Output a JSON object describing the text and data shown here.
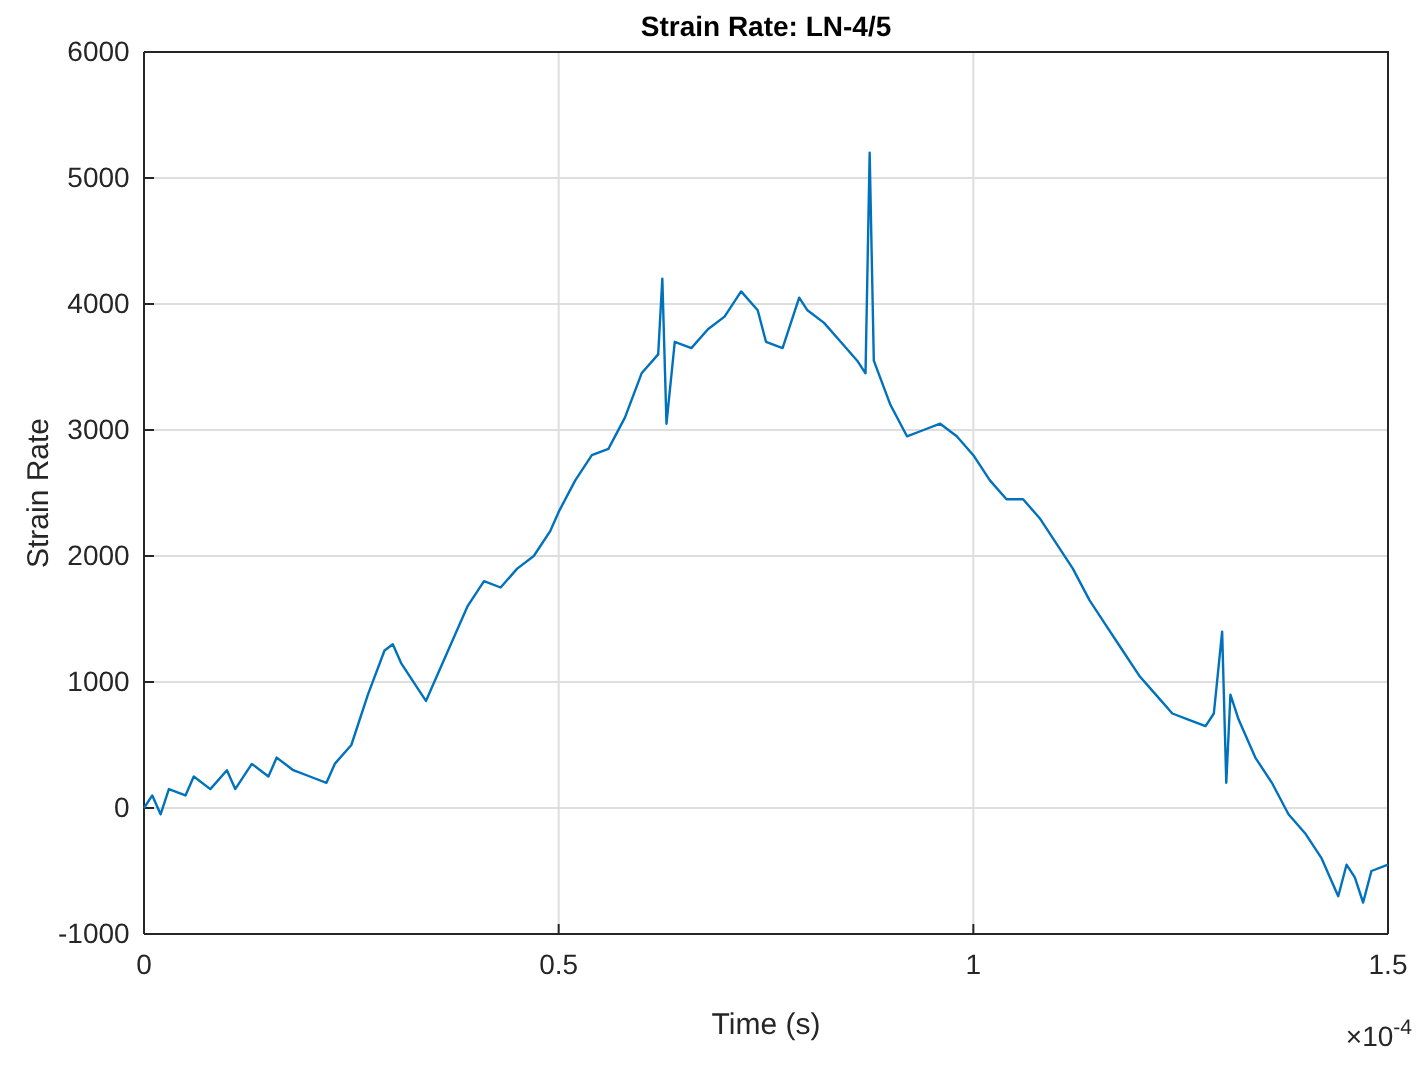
{
  "chart_data": {
    "type": "line",
    "title": "Strain Rate: LN-4/5",
    "xlabel": "Time (s)",
    "ylabel": "Strain Rate",
    "annotations": [
      "×10$^{-4}$"
    ],
    "xlim": [
      0,
      1.5
    ],
    "xticks": [
      0,
      0.5,
      1,
      1.5
    ],
    "ylim": [
      -1000,
      6000
    ],
    "yticks": [
      -1000,
      0,
      1000,
      2000,
      3000,
      4000,
      5000,
      6000
    ],
    "grid": true,
    "series": [
      {
        "color": "#0072bd",
        "x": [
          0,
          0.01,
          0.02,
          0.03,
          0.05,
          0.06,
          0.08,
          0.1,
          0.11,
          0.13,
          0.15,
          0.16,
          0.18,
          0.2,
          0.22,
          0.23,
          0.25,
          0.27,
          0.29,
          0.3,
          0.31,
          0.33,
          0.34,
          0.35,
          0.37,
          0.39,
          0.41,
          0.43,
          0.45,
          0.47,
          0.49,
          0.5,
          0.52,
          0.54,
          0.56,
          0.58,
          0.6,
          0.62,
          0.625,
          0.63,
          0.64,
          0.66,
          0.68,
          0.7,
          0.72,
          0.74,
          0.75,
          0.77,
          0.79,
          0.8,
          0.82,
          0.84,
          0.86,
          0.87,
          0.875,
          0.88,
          0.9,
          0.92,
          0.94,
          0.96,
          0.98,
          1,
          1.02,
          1.04,
          1.06,
          1.08,
          1.1,
          1.12,
          1.14,
          1.16,
          1.18,
          1.2,
          1.22,
          1.24,
          1.26,
          1.28,
          1.29,
          1.3,
          1.305,
          1.31,
          1.32,
          1.34,
          1.36,
          1.38,
          1.4,
          1.42,
          1.44,
          1.45,
          1.46,
          1.47,
          1.48,
          1.5
        ],
        "values": [
          0,
          100,
          -50,
          150,
          100,
          250,
          150,
          300,
          150,
          350,
          250,
          400,
          300,
          250,
          200,
          350,
          500,
          900,
          1250,
          1300,
          1150,
          950,
          850,
          1000,
          1300,
          1600,
          1800,
          1750,
          1900,
          2000,
          2200,
          2350,
          2600,
          2800,
          2850,
          3100,
          3450,
          3600,
          4200,
          3050,
          3700,
          3650,
          3800,
          3900,
          4100,
          3950,
          3700,
          3650,
          4050,
          3950,
          3850,
          3700,
          3550,
          3450,
          5200,
          3550,
          3200,
          2950,
          3000,
          3050,
          2950,
          2800,
          2600,
          2450,
          2450,
          2300,
          2100,
          1900,
          1650,
          1450,
          1250,
          1050,
          900,
          750,
          700,
          650,
          750,
          1400,
          200,
          900,
          700,
          400,
          200,
          -50,
          -200,
          -400,
          -700,
          -450,
          -550,
          -750,
          -500,
          -450
        ]
      }
    ]
  }
}
